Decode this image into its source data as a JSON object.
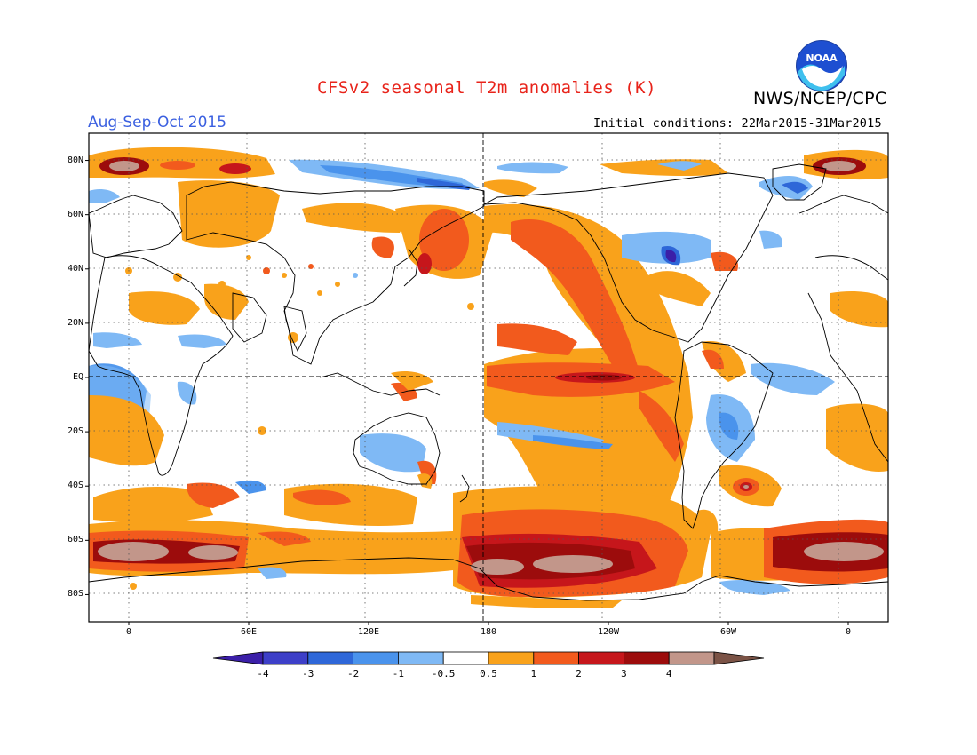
{
  "header": {
    "title": "CFSv2 seasonal T2m anomalies (K)",
    "agency": "NWS/NCEP/CPC",
    "season": "Aug-Sep-Oct 2015",
    "initial_conditions": "Initial conditions: 22Mar2015-31Mar2015",
    "logo_text": "NOAA"
  },
  "axes": {
    "lat_labels": [
      "80N",
      "60N",
      "40N",
      "20N",
      "EQ",
      "20S",
      "40S",
      "60S",
      "80S"
    ],
    "lat_values": [
      80,
      60,
      40,
      20,
      0,
      -20,
      -40,
      -60,
      -80
    ],
    "lon_labels": [
      "0",
      "60E",
      "120E",
      "180",
      "120W",
      "60W",
      "0"
    ],
    "lon_values": [
      0,
      60,
      120,
      180,
      240,
      300,
      360
    ],
    "lon_range": [
      -20,
      380
    ],
    "lat_range": [
      -90,
      90
    ]
  },
  "colorbar": {
    "labels": [
      "-4",
      "-3",
      "-2",
      "-1",
      "-0.5",
      "0.5",
      "1",
      "2",
      "3",
      "4"
    ],
    "colors": [
      "#3b1fa8",
      "#3d3fc8",
      "#2e67d8",
      "#4a93ec",
      "#7fb9f5",
      "#ffffff",
      "#f9a21b",
      "#f25a1d",
      "#c6161b",
      "#9c0c0c",
      "#c2968a",
      "#7b5346"
    ]
  },
  "colors": {
    "warm1": "#f9a21b",
    "warm2": "#f25a1d",
    "warm3": "#c6161b",
    "warm4": "#9c0c0c",
    "warm5": "#c2968a",
    "cool1": "#7fb9f5",
    "cool2": "#4a93ec",
    "cool3": "#2e67d8",
    "cool4": "#3d3fc8"
  }
}
